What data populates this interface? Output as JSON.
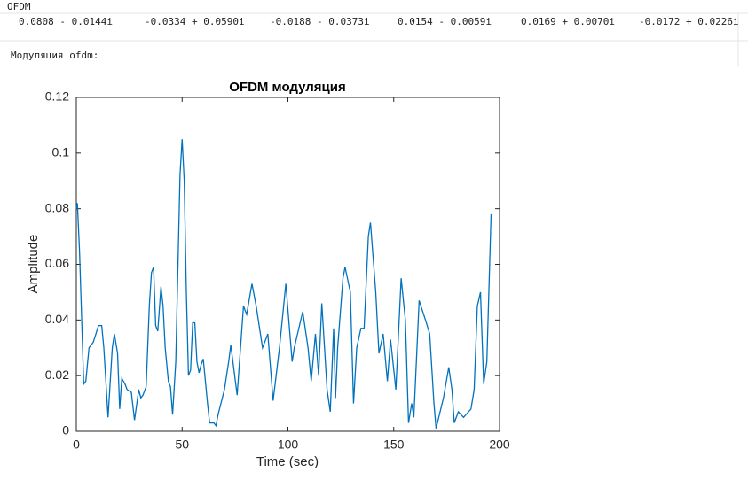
{
  "header": {
    "label": "OFDM",
    "row": [
      "0.0808 - 0.0144i",
      "-0.0334 + 0.0590i",
      "-0.0188 - 0.0373i",
      "0.0154 - 0.0059i",
      "0.0169 + 0.0070i",
      "-0.0172 + 0.0226i"
    ],
    "caption": "Модуляция ofdm:"
  },
  "chart_data": {
    "type": "line",
    "title": "OFDM модуляция",
    "x_label": "Time (sec)",
    "y_label": "Amplitude",
    "color": "#0072bd",
    "x": [
      0,
      0.5,
      1.5,
      3.5,
      4.5,
      6,
      8,
      10.5,
      12,
      13,
      15,
      17,
      18,
      19.5,
      20.5,
      21.5,
      23,
      24,
      26,
      27.5,
      29.5,
      30.5,
      31.5,
      33,
      34.5,
      35.5,
      36.5,
      37.5,
      38.5,
      40,
      41,
      42,
      43.5,
      44.5,
      45.5,
      47,
      49,
      50,
      51,
      52,
      53,
      54,
      55,
      56,
      57,
      58,
      59,
      60,
      61,
      62,
      63,
      65,
      66,
      67,
      70,
      72,
      73,
      76,
      79,
      80.5,
      83,
      85,
      88,
      90.5,
      93,
      96,
      99,
      102,
      103,
      107,
      109.5,
      111,
      113,
      114.5,
      116,
      118.5,
      120,
      121.6,
      122.5,
      123.5,
      126,
      127,
      129.5,
      131,
      132.5,
      134.5,
      136,
      138,
      139,
      141.5,
      143,
      145,
      147,
      148.5,
      151,
      153.5,
      155.5,
      157,
      158.5,
      159.5,
      162,
      165,
      167,
      169,
      170,
      173.5,
      176,
      177.5,
      178.6,
      180.5,
      183,
      186.5,
      188,
      189.5,
      191,
      192.5,
      194,
      196
    ],
    "values": [
      0.08,
      0.082,
      0.065,
      0.017,
      0.018,
      0.03,
      0.032,
      0.038,
      0.038,
      0.03,
      0.005,
      0.03,
      0.035,
      0.028,
      0.008,
      0.019,
      0.017,
      0.015,
      0.014,
      0.004,
      0.015,
      0.012,
      0.013,
      0.016,
      0.045,
      0.057,
      0.059,
      0.038,
      0.036,
      0.052,
      0.045,
      0.03,
      0.018,
      0.016,
      0.006,
      0.025,
      0.092,
      0.105,
      0.09,
      0.05,
      0.02,
      0.022,
      0.039,
      0.039,
      0.025,
      0.021,
      0.024,
      0.026,
      0.018,
      0.01,
      0.003,
      0.003,
      0.002,
      0.006,
      0.015,
      0.025,
      0.031,
      0.013,
      0.045,
      0.042,
      0.053,
      0.045,
      0.03,
      0.035,
      0.011,
      0.03,
      0.053,
      0.025,
      0.03,
      0.043,
      0.03,
      0.018,
      0.035,
      0.02,
      0.046,
      0.015,
      0.007,
      0.037,
      0.012,
      0.03,
      0.055,
      0.059,
      0.05,
      0.01,
      0.03,
      0.037,
      0.037,
      0.07,
      0.075,
      0.05,
      0.028,
      0.035,
      0.018,
      0.033,
      0.015,
      0.055,
      0.04,
      0.003,
      0.01,
      0.005,
      0.047,
      0.04,
      0.035,
      0.01,
      0.001,
      0.012,
      0.023,
      0.015,
      0.003,
      0.007,
      0.005,
      0.008,
      0.015,
      0.045,
      0.05,
      0.017,
      0.025,
      0.078
    ],
    "xlim": [
      0,
      200
    ],
    "ylim": [
      0,
      0.12
    ],
    "xticks": [
      0,
      50,
      100,
      150,
      200
    ],
    "yticks": [
      0,
      0.02,
      0.04,
      0.06,
      0.08,
      0.1,
      0.12
    ]
  }
}
